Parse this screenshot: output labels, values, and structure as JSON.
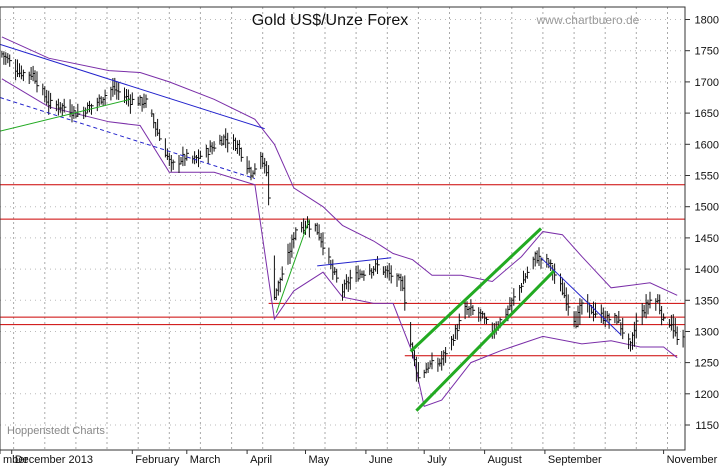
{
  "chart_data": {
    "type": "ohlc",
    "title": "Gold US$/Unze Forex",
    "watermark": "www.chartbuero.de",
    "source_label": "Hoppenstedt Charts",
    "ylim": [
      1110,
      1820
    ],
    "y_ticks": [
      1150,
      1200,
      1250,
      1300,
      1350,
      1400,
      1450,
      1500,
      1550,
      1600,
      1650,
      1700,
      1750,
      1800
    ],
    "x_range": [
      "2012-11-25",
      "2013-11-12"
    ],
    "x_tick_labels": [
      {
        "label": "mber",
        "date": "2012-11-25"
      },
      {
        "label": "December 2013",
        "date": "2012-12-01"
      },
      {
        "label": "February",
        "date": "2013-02-01"
      },
      {
        "label": "March",
        "date": "2013-03-01"
      },
      {
        "label": "April",
        "date": "2013-04-01"
      },
      {
        "label": "May",
        "date": "2013-05-01"
      },
      {
        "label": "June",
        "date": "2013-06-01"
      },
      {
        "label": "July",
        "date": "2013-07-01"
      },
      {
        "label": "August",
        "date": "2013-08-01"
      },
      {
        "label": "September",
        "date": "2013-09-01"
      },
      {
        "label": "November",
        "date": "2013-11-01"
      }
    ],
    "grid_dates": [
      "2012-12-02",
      "2012-12-18",
      "2013-01-03",
      "2013-01-19",
      "2013-02-04",
      "2013-02-20",
      "2013-03-08",
      "2013-03-24",
      "2013-04-09",
      "2013-04-25",
      "2013-05-11",
      "2013-05-27",
      "2013-06-12",
      "2013-06-28",
      "2013-07-14",
      "2013-07-30",
      "2013-08-15",
      "2013-08-31",
      "2013-09-16",
      "2013-10-02",
      "2013-10-18",
      "2013-11-03"
    ],
    "price_path": [
      [
        "2012-11-26",
        1745
      ],
      [
        "2012-12-05",
        1715
      ],
      [
        "2012-12-12",
        1712
      ],
      [
        "2012-12-20",
        1665
      ],
      [
        "2012-12-28",
        1660
      ],
      [
        "2013-01-04",
        1648
      ],
      [
        "2013-01-14",
        1668
      ],
      [
        "2013-01-22",
        1690
      ],
      [
        "2013-01-31",
        1670
      ],
      [
        "2013-02-08",
        1668
      ],
      [
        "2013-02-15",
        1610
      ],
      [
        "2013-02-21",
        1565
      ],
      [
        "2013-02-28",
        1580
      ],
      [
        "2013-03-05",
        1575
      ],
      [
        "2013-03-12",
        1590
      ],
      [
        "2013-03-20",
        1610
      ],
      [
        "2013-03-27",
        1598
      ],
      [
        "2013-04-03",
        1555
      ],
      [
        "2013-04-08",
        1575
      ],
      [
        "2013-04-11",
        1560
      ],
      [
        "2013-04-15",
        1360
      ],
      [
        "2013-04-17",
        1375
      ],
      [
        "2013-04-22",
        1420
      ],
      [
        "2013-04-26",
        1465
      ],
      [
        "2013-05-01",
        1470
      ],
      [
        "2013-05-06",
        1468
      ],
      [
        "2013-05-10",
        1440
      ],
      [
        "2013-05-15",
        1395
      ],
      [
        "2013-05-20",
        1365
      ],
      [
        "2013-05-24",
        1385
      ],
      [
        "2013-05-31",
        1395
      ],
      [
        "2013-06-07",
        1405
      ],
      [
        "2013-06-14",
        1390
      ],
      [
        "2013-06-20",
        1375
      ],
      [
        "2013-06-24",
        1280
      ],
      [
        "2013-06-28",
        1225
      ],
      [
        "2013-07-03",
        1245
      ],
      [
        "2013-07-09",
        1250
      ],
      [
        "2013-07-15",
        1285
      ],
      [
        "2013-07-22",
        1335
      ],
      [
        "2013-07-29",
        1330
      ],
      [
        "2013-08-05",
        1300
      ],
      [
        "2013-08-12",
        1330
      ],
      [
        "2013-08-19",
        1370
      ],
      [
        "2013-08-27",
        1420
      ],
      [
        "2013-09-03",
        1410
      ],
      [
        "2013-09-10",
        1365
      ],
      [
        "2013-09-17",
        1315
      ],
      [
        "2013-09-20",
        1345
      ],
      [
        "2013-09-27",
        1330
      ],
      [
        "2013-10-03",
        1320
      ],
      [
        "2013-10-08",
        1320
      ],
      [
        "2013-10-15",
        1275
      ],
      [
        "2013-10-18",
        1315
      ],
      [
        "2013-10-25",
        1350
      ],
      [
        "2013-10-29",
        1348
      ],
      [
        "2013-11-01",
        1315
      ],
      [
        "2013-11-05",
        1315
      ],
      [
        "2013-11-08",
        1285
      ],
      [
        "2013-11-11",
        1285
      ]
    ],
    "bollinger_upper": [
      [
        "2012-11-26",
        1772
      ],
      [
        "2012-12-20",
        1738
      ],
      [
        "2013-01-20",
        1718
      ],
      [
        "2013-02-05",
        1715
      ],
      [
        "2013-02-20",
        1700
      ],
      [
        "2013-03-15",
        1672
      ],
      [
        "2013-04-05",
        1640
      ],
      [
        "2013-04-15",
        1600
      ],
      [
        "2013-04-25",
        1530
      ],
      [
        "2013-05-10",
        1500
      ],
      [
        "2013-05-20",
        1470
      ],
      [
        "2013-06-05",
        1445
      ],
      [
        "2013-06-15",
        1425
      ],
      [
        "2013-06-25",
        1415
      ],
      [
        "2013-07-05",
        1390
      ],
      [
        "2013-07-20",
        1390
      ],
      [
        "2013-08-05",
        1380
      ],
      [
        "2013-08-20",
        1420
      ],
      [
        "2013-08-31",
        1460
      ],
      [
        "2013-09-10",
        1455
      ],
      [
        "2013-09-20",
        1420
      ],
      [
        "2013-10-05",
        1370
      ],
      [
        "2013-10-25",
        1378
      ],
      [
        "2013-11-08",
        1358
      ]
    ],
    "bollinger_lower": [
      [
        "2012-11-26",
        1705
      ],
      [
        "2012-12-20",
        1660
      ],
      [
        "2013-01-20",
        1636
      ],
      [
        "2013-02-05",
        1630
      ],
      [
        "2013-02-20",
        1555
      ],
      [
        "2013-03-15",
        1555
      ],
      [
        "2013-04-05",
        1535
      ],
      [
        "2013-04-15",
        1320
      ],
      [
        "2013-04-25",
        1365
      ],
      [
        "2013-05-10",
        1395
      ],
      [
        "2013-05-20",
        1355
      ],
      [
        "2013-06-05",
        1345
      ],
      [
        "2013-06-15",
        1345
      ],
      [
        "2013-06-25",
        1265
      ],
      [
        "2013-07-01",
        1180
      ],
      [
        "2013-07-10",
        1190
      ],
      [
        "2013-07-25",
        1250
      ],
      [
        "2013-08-10",
        1270
      ],
      [
        "2013-08-31",
        1292
      ],
      [
        "2013-09-20",
        1280
      ],
      [
        "2013-10-05",
        1285
      ],
      [
        "2013-10-20",
        1275
      ],
      [
        "2013-11-01",
        1275
      ],
      [
        "2013-11-08",
        1258
      ]
    ],
    "horizontal_lines": [
      {
        "y": 1535,
        "date_from": "2012-11-25",
        "date_to": "2013-11-12",
        "color": "#cc0000"
      },
      {
        "y": 1480,
        "date_from": "2012-11-25",
        "date_to": "2013-11-12",
        "color": "#cc0000"
      },
      {
        "y": 1345,
        "date_from": "2013-04-12",
        "date_to": "2013-11-12",
        "color": "#cc0000"
      },
      {
        "y": 1323,
        "date_from": "2012-11-25",
        "date_to": "2013-11-12",
        "color": "#cc0000"
      },
      {
        "y": 1311,
        "date_from": "2012-11-25",
        "date_to": "2013-11-12",
        "color": "#cc0000"
      },
      {
        "y": 1261,
        "date_from": "2013-06-21",
        "date_to": "2013-11-08",
        "color": "#cc0000"
      }
    ],
    "trend_lines": [
      {
        "from": [
          "2012-11-25",
          1760
        ],
        "to": [
          "2013-04-10",
          1625
        ],
        "color": "#2222cc",
        "dashed": false,
        "width": 1
      },
      {
        "from": [
          "2012-11-25",
          1675
        ],
        "to": [
          "2013-04-05",
          1545
        ],
        "color": "#2222cc",
        "dashed": true,
        "width": 1
      },
      {
        "from": [
          "2012-11-25",
          1621
        ],
        "to": [
          "2013-01-31",
          1672
        ],
        "color": "#22aa22",
        "dashed": false,
        "width": 1
      },
      {
        "from": [
          "2013-04-16",
          1330
        ],
        "to": [
          "2013-05-03",
          1480
        ],
        "color": "#22aa22",
        "dashed": false,
        "width": 1
      },
      {
        "from": [
          "2013-05-07",
          1405
        ],
        "to": [
          "2013-06-14",
          1418
        ],
        "color": "#2222cc",
        "dashed": false,
        "width": 1
      },
      {
        "from": [
          "2013-06-24",
          1268
        ],
        "to": [
          "2013-08-30",
          1465
        ],
        "color": "#22aa22",
        "dashed": false,
        "width": 3
      },
      {
        "from": [
          "2013-06-27",
          1173
        ],
        "to": [
          "2013-09-06",
          1398
        ],
        "color": "#22aa22",
        "dashed": false,
        "width": 3
      },
      {
        "from": [
          "2013-08-30",
          1418
        ],
        "to": [
          "2013-10-10",
          1295
        ],
        "color": "#2222cc",
        "dashed": false,
        "width": 1
      }
    ]
  }
}
